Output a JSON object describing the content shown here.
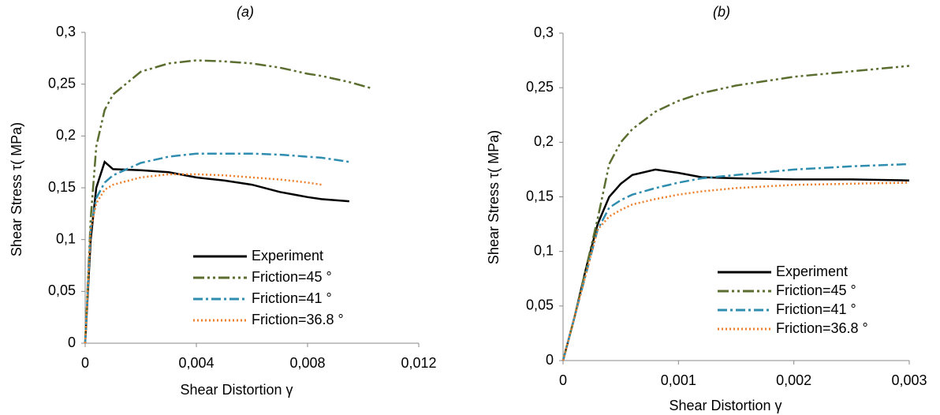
{
  "chart_data": [
    {
      "type": "line",
      "title": "(a)",
      "x_label": "Shear Distortion γ",
      "y_label": "Shear Stress τ( MPa)",
      "x": [
        0,
        0.0002,
        0.0004,
        0.0007,
        0.001,
        0.002,
        0.003,
        0.004,
        0.005,
        0.006,
        0.007,
        0.008,
        0.0085,
        0.009,
        0.0095,
        0.0103
      ],
      "series": [
        {
          "name": "Experiment",
          "color": "#000000",
          "values": [
            0,
            0.1,
            0.15,
            0.175,
            0.168,
            0.167,
            0.165,
            0.16,
            0.157,
            0.153,
            0.146,
            0.141,
            0.139,
            0.138,
            0.137,
            null
          ]
        },
        {
          "name": "Friction=45 °",
          "color": "#5b6e2f",
          "values": [
            0,
            0.12,
            0.19,
            0.225,
            0.24,
            0.262,
            0.27,
            0.273,
            0.272,
            0.27,
            0.266,
            0.26,
            0.258,
            0.255,
            0.252,
            0.246
          ]
        },
        {
          "name": "Friction=41 °",
          "color": "#2f8db0",
          "values": [
            0,
            0.11,
            0.14,
            0.155,
            0.162,
            0.174,
            0.18,
            0.183,
            0.183,
            0.183,
            0.182,
            0.18,
            0.179,
            0.177,
            0.175,
            null
          ]
        },
        {
          "name": "Friction=36.8 °",
          "color": "#f07f2a",
          "values": [
            0,
            0.11,
            0.135,
            0.148,
            0.153,
            0.16,
            0.163,
            0.163,
            0.162,
            0.16,
            0.158,
            0.155,
            0.153,
            null,
            null,
            null
          ]
        }
      ],
      "xlim": [
        0,
        0.012
      ],
      "xticks": [
        0,
        {
          "value": 0.004,
          "label": "0,004"
        },
        {
          "value": 0.008,
          "label": "0,008"
        },
        {
          "value": 0.012,
          "label": "0,012"
        }
      ],
      "ylim": [
        0,
        0.3
      ],
      "yticks": [
        0,
        {
          "value": 0.05,
          "label": "0,05"
        },
        {
          "value": 0.1,
          "label": "0,1"
        },
        {
          "value": 0.15,
          "label": "0,15"
        },
        {
          "value": 0.2,
          "label": "0,2"
        },
        {
          "value": 0.25,
          "label": "0,25"
        },
        {
          "value": 0.3,
          "label": "0,3"
        }
      ],
      "grid": false,
      "legend": "lower right"
    },
    {
      "type": "line",
      "title": "(b)",
      "x_label": "Shear Distortion γ",
      "y_label": "Shear Stress τ( MPa)",
      "x": [
        0,
        0.0001,
        0.0002,
        0.0003,
        0.0004,
        0.0005,
        0.0006,
        0.0008,
        0.001,
        0.0012,
        0.0015,
        0.002,
        0.0025,
        0.003
      ],
      "series": [
        {
          "name": "Experiment",
          "color": "#000000",
          "values": [
            0,
            0.04,
            0.085,
            0.125,
            0.15,
            0.162,
            0.17,
            0.175,
            0.172,
            0.168,
            0.167,
            0.166,
            0.166,
            0.165
          ]
        },
        {
          "name": "Friction=45 °",
          "color": "#5b6e2f",
          "values": [
            0,
            0.04,
            0.085,
            0.13,
            0.18,
            0.2,
            0.212,
            0.228,
            0.238,
            0.245,
            0.252,
            0.26,
            0.265,
            0.27
          ]
        },
        {
          "name": "Friction=41 °",
          "color": "#2f8db0",
          "values": [
            0,
            0.04,
            0.08,
            0.12,
            0.14,
            0.147,
            0.152,
            0.158,
            0.163,
            0.167,
            0.17,
            0.175,
            0.178,
            0.18
          ]
        },
        {
          "name": "Friction=36.8 °",
          "color": "#f07f2a",
          "values": [
            0,
            0.04,
            0.08,
            0.12,
            0.132,
            0.138,
            0.143,
            0.148,
            0.152,
            0.155,
            0.158,
            0.161,
            0.162,
            0.163
          ]
        }
      ],
      "xlim": [
        0,
        0.003
      ],
      "xticks": [
        0,
        {
          "value": 0.001,
          "label": "0,001"
        },
        {
          "value": 0.002,
          "label": "0,002"
        },
        {
          "value": 0.003,
          "label": "0,003"
        }
      ],
      "ylim": [
        0,
        0.3
      ],
      "yticks": [
        0,
        {
          "value": 0.05,
          "label": "0,05"
        },
        {
          "value": 0.1,
          "label": "0,1"
        },
        {
          "value": 0.15,
          "label": "0,15"
        },
        {
          "value": 0.2,
          "label": "0,2"
        },
        {
          "value": 0.25,
          "label": "0,25"
        },
        {
          "value": 0.3,
          "label": "0,3"
        }
      ],
      "grid": false,
      "legend": "lower right"
    }
  ]
}
